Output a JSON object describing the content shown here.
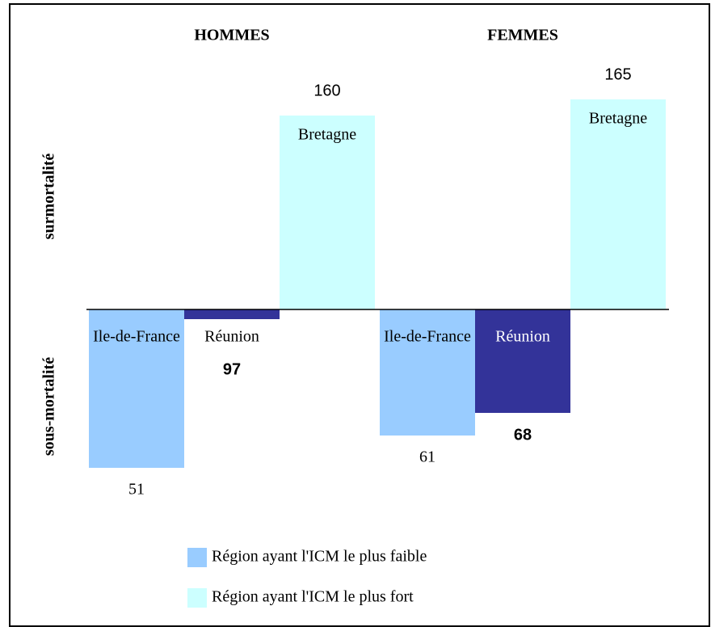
{
  "chart_data": {
    "type": "bar",
    "categories": [
      "HOMMES",
      "FEMMES"
    ],
    "y_labels": [
      "surmortalité",
      "sous-mortalité"
    ],
    "baseline": 100,
    "ylim": [
      40,
      170
    ],
    "series": [
      {
        "name": "Région ayant l'ICM le plus faible",
        "color": "#99ccff",
        "values": [
          51,
          61
        ],
        "bar_labels": [
          "Ile-de-France",
          "Ile-de-France"
        ]
      },
      {
        "color": "#333399",
        "values": [
          97,
          68
        ],
        "bar_labels": [
          "Réunion",
          "Réunion"
        ]
      },
      {
        "name": "Région ayant l'ICM le plus fort",
        "color": "#ccffff",
        "values": [
          160,
          165
        ],
        "bar_labels": [
          "Bretagne",
          "Bretagne"
        ]
      }
    ]
  }
}
